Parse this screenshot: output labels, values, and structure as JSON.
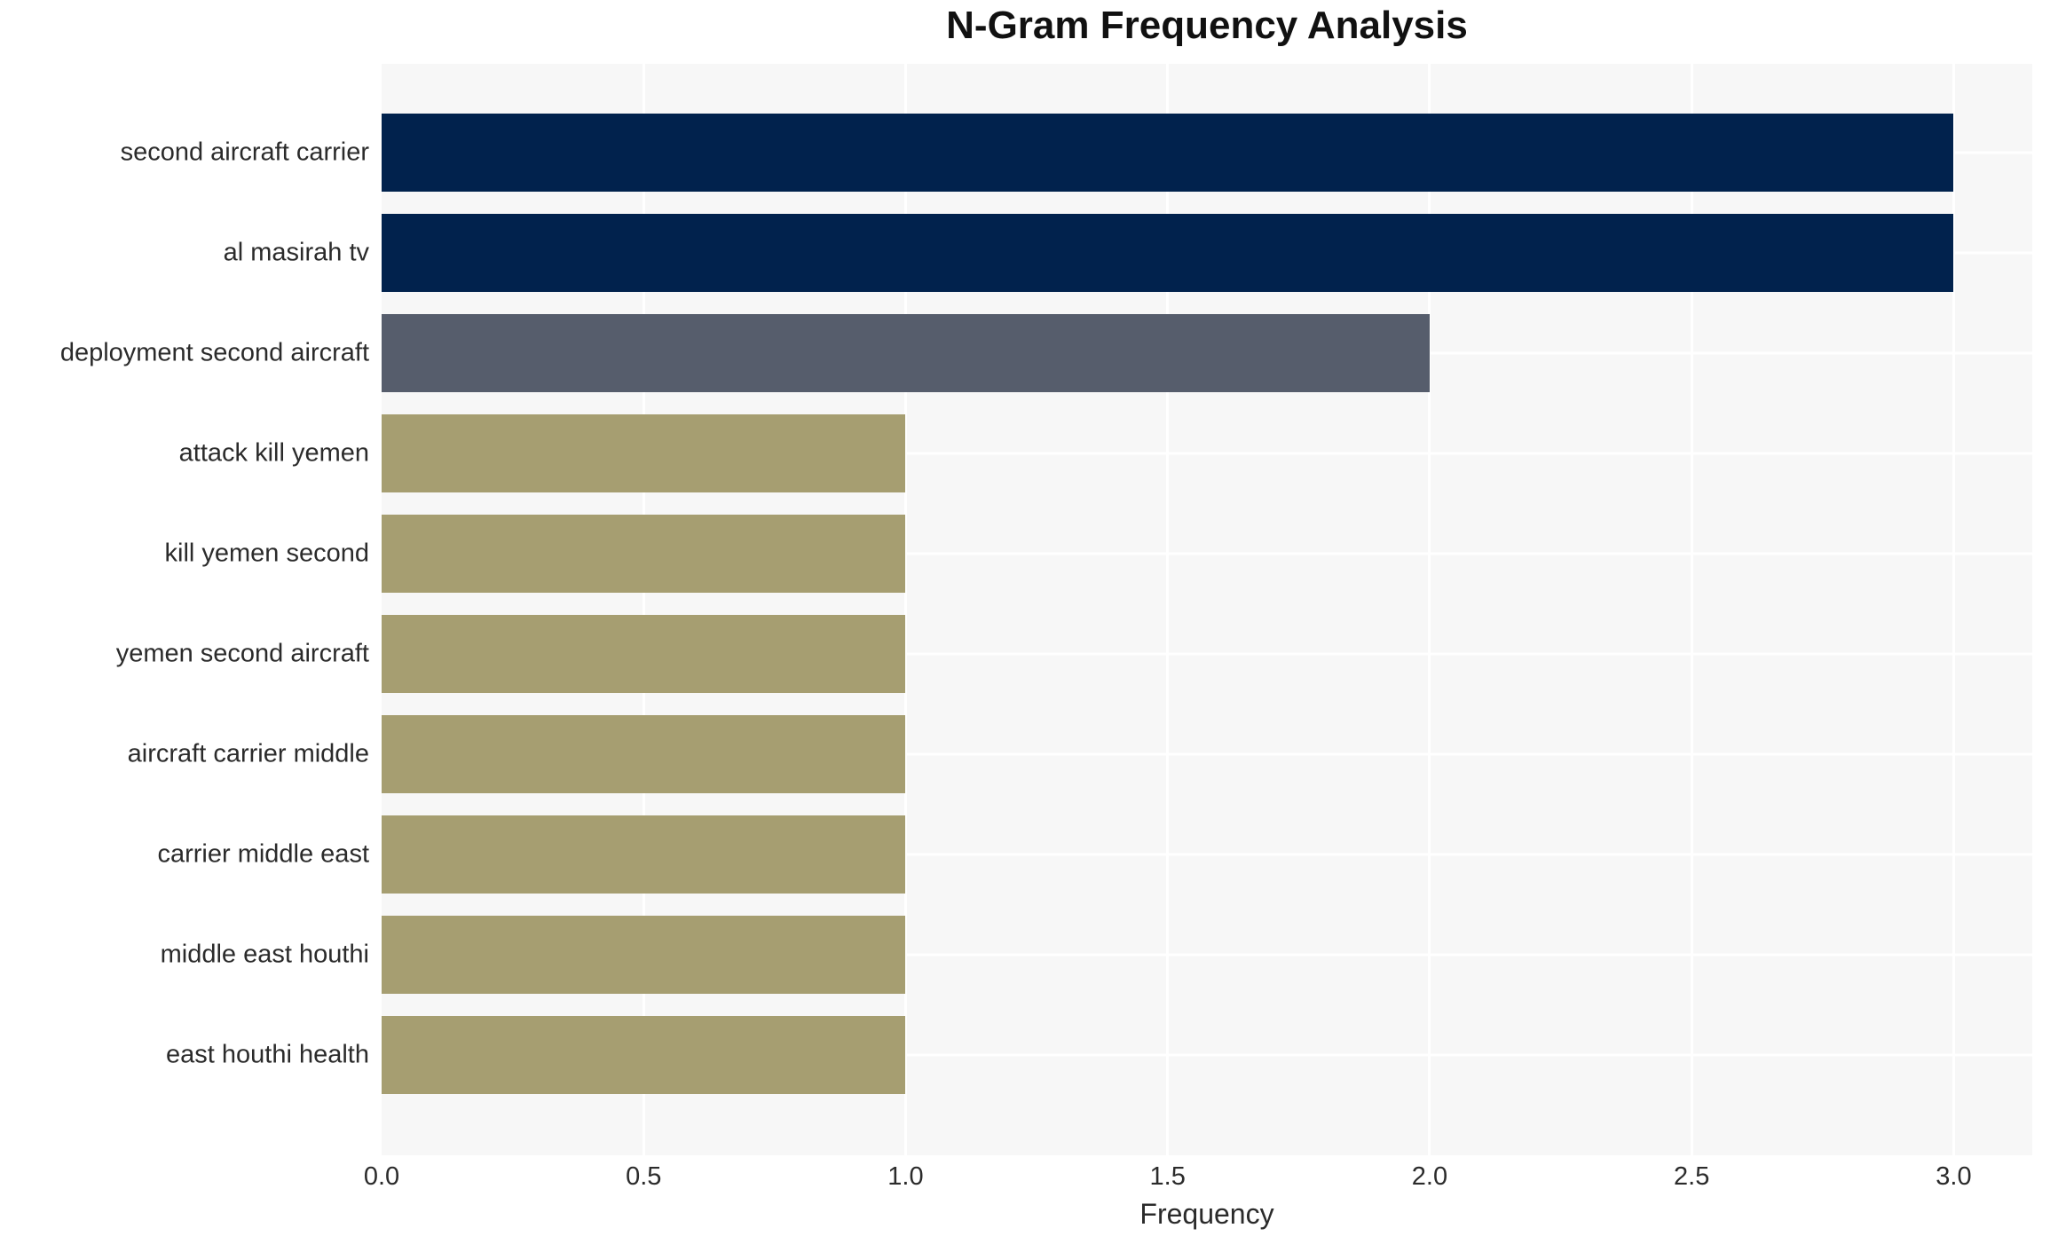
{
  "chart_data": {
    "type": "bar",
    "orientation": "horizontal",
    "title": "N-Gram Frequency Analysis",
    "xlabel": "Frequency",
    "ylabel": "",
    "categories": [
      "second aircraft carrier",
      "al masirah tv",
      "deployment second aircraft",
      "attack kill yemen",
      "kill yemen second",
      "yemen second aircraft",
      "aircraft carrier middle",
      "carrier middle east",
      "middle east houthi",
      "east houthi health"
    ],
    "values": [
      3,
      3,
      2,
      1,
      1,
      1,
      1,
      1,
      1,
      1
    ],
    "bar_colors": [
      "#01224d",
      "#01224d",
      "#565d6c",
      "#a69e71",
      "#a69e71",
      "#a69e71",
      "#a69e71",
      "#a69e71",
      "#a69e71",
      "#a69e71"
    ],
    "xtick_labels": [
      "0.0",
      "0.5",
      "1.0",
      "1.5",
      "2.0",
      "2.5",
      "3.0"
    ],
    "xlim": [
      0,
      3.15
    ],
    "grid": "on",
    "legend_position": "none",
    "plot_background": "#f7f7f7",
    "grid_color": "#ffffff",
    "text_color": "#2b2b2b",
    "title_color": "#111111"
  }
}
